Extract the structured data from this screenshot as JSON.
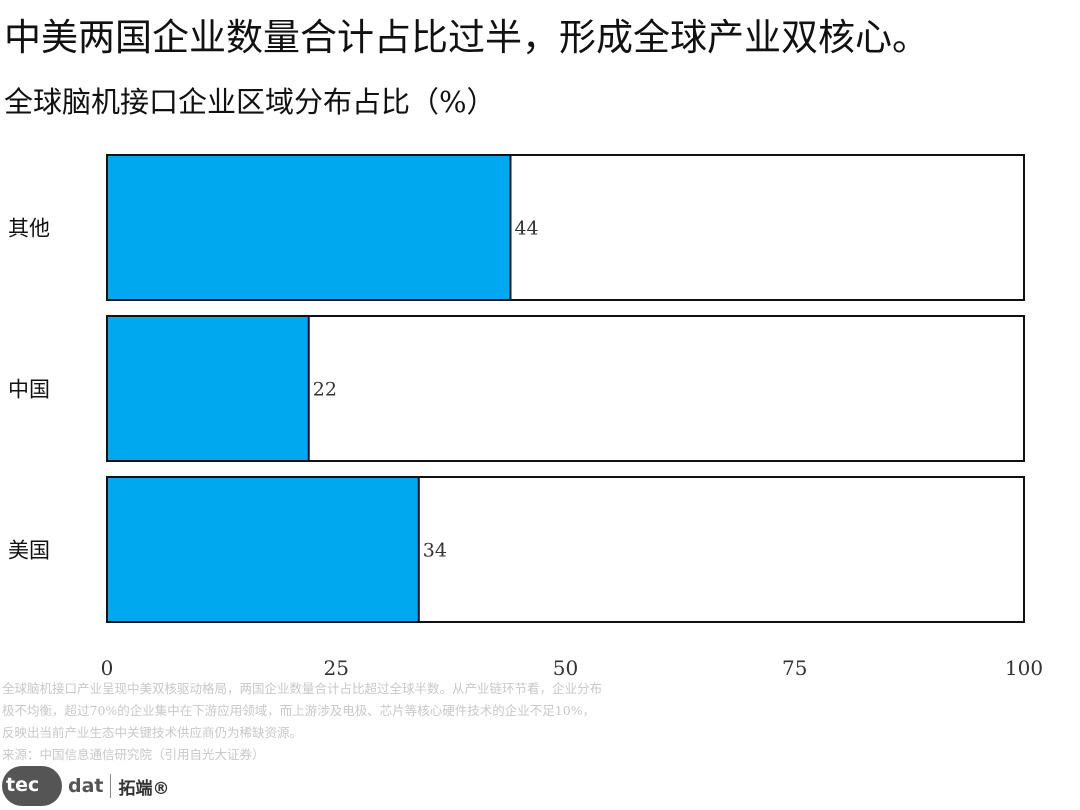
{
  "headline": "中美两国企业数量合计占比过半，形成全球产业双核心。",
  "chart_data": {
    "type": "bar",
    "orientation": "horizontal",
    "title": "全球脑机接口企业区域分布占比（%）",
    "categories": [
      "其他",
      "中国",
      "美国"
    ],
    "values": [
      44,
      22,
      34
    ],
    "data_labels": [
      "44",
      "22",
      "34"
    ],
    "xlim": [
      0,
      100
    ],
    "x_ticks": [
      "0",
      "25",
      "50",
      "75",
      "100"
    ],
    "bar_color": "#00a8f0",
    "track_color": "#ffffff",
    "outline_color": "#111111",
    "grid": false,
    "legend": "none"
  },
  "footnote": {
    "lines": [
      "全球脑机接口产业呈现中美双核驱动格局，两国企业数量合计占比超过全球半数。从产业链环节看，企业分布",
      "极不均衡，超过70%的企业集中在下游应用领域，而上游涉及电极、芯片等核心硬件技术的企业不足10%，",
      "反映出当前产业生态中关键技术供应商仍为稀缺资源。",
      "来源：中国信息通信研究院（引用自光大证券）"
    ]
  },
  "logo": {
    "badge_text": "tec",
    "badge_text_2": "dat",
    "brand_cn": "拓端®"
  }
}
